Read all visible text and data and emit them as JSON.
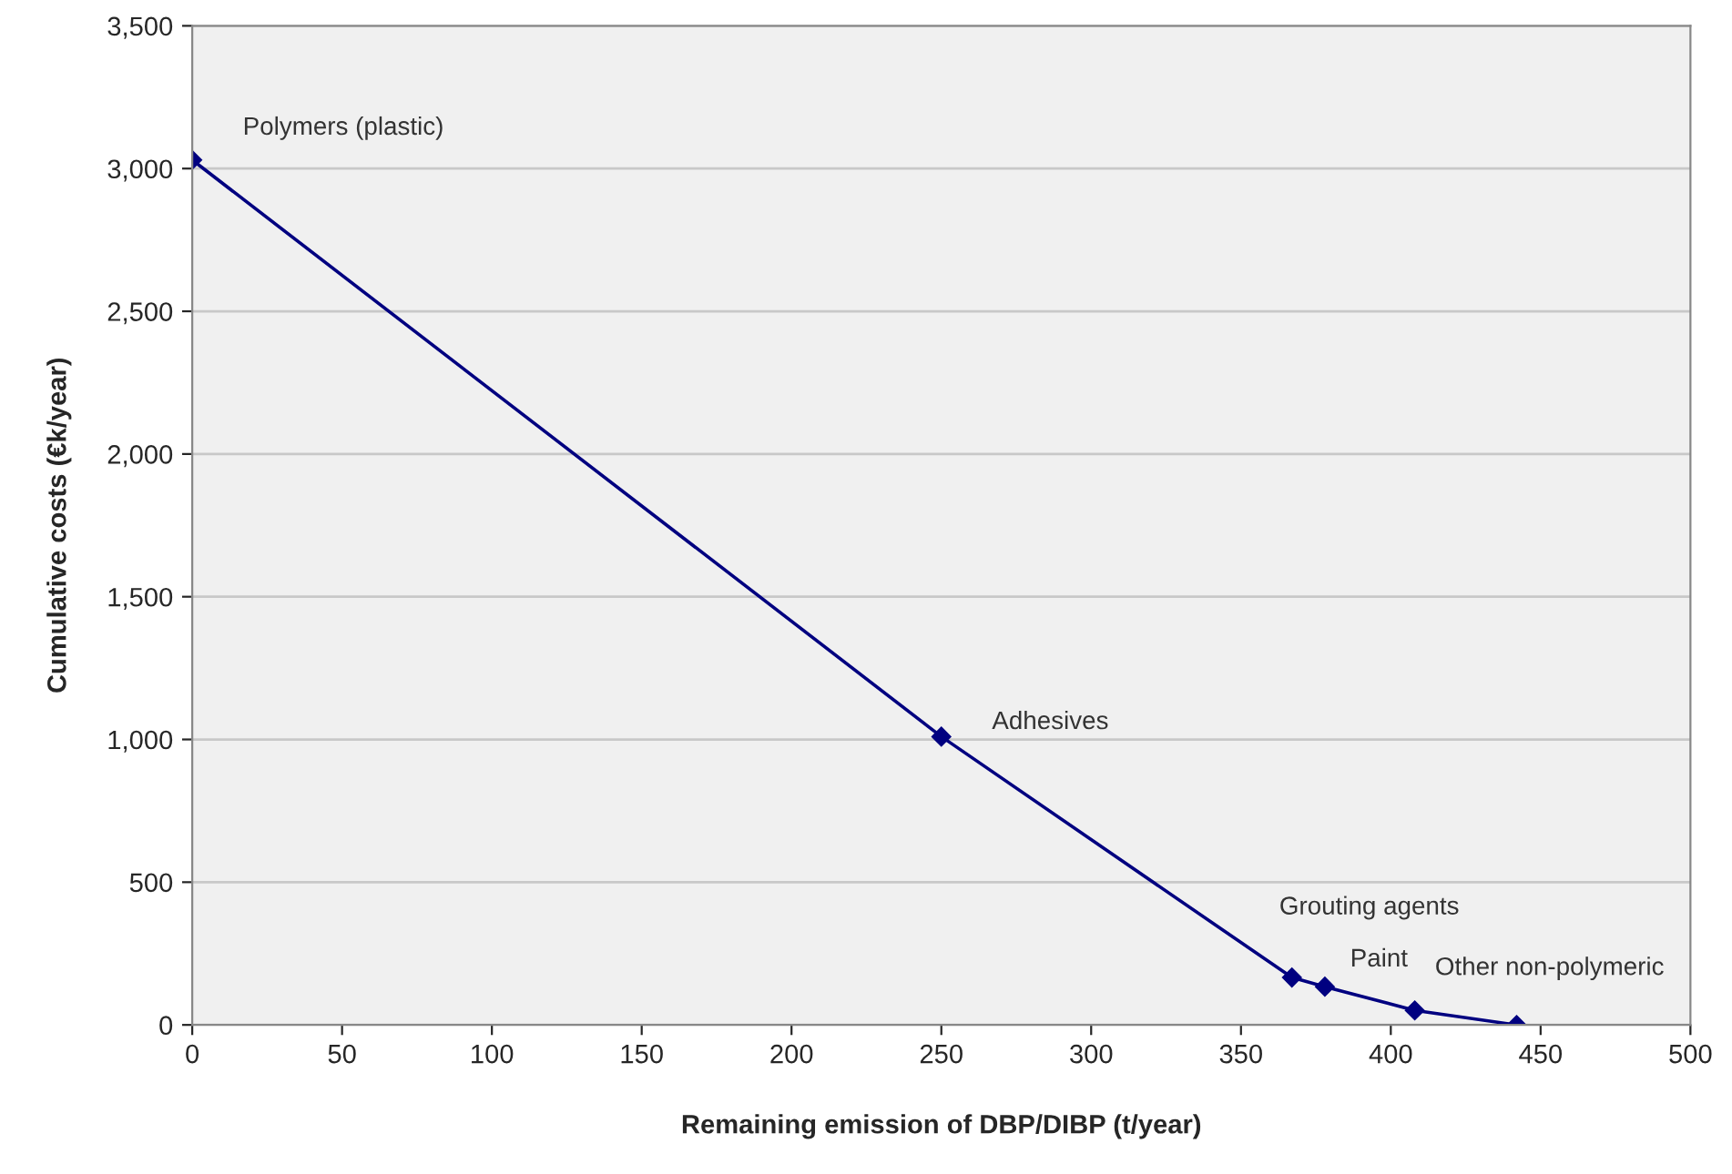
{
  "chart_data": {
    "type": "line",
    "xlabel": "Remaining emission of DBP/DIBP (t/year)",
    "ylabel": "Cumulative costs (€k/year)",
    "x": [
      0,
      250,
      367,
      378,
      408,
      442
    ],
    "series": [
      {
        "color": "#000080",
        "values": [
          3030,
          1010,
          166,
          134,
          51,
          0
        ]
      }
    ],
    "marker": "diamond",
    "line_style": "solid",
    "grid": "y",
    "legend": false,
    "xlim": [
      0,
      500
    ],
    "xticks": [
      0,
      50,
      100,
      150,
      200,
      250,
      300,
      350,
      400,
      450,
      500
    ],
    "ylim": [
      0,
      3500
    ],
    "yticks": [
      0,
      500,
      {
        "value": 1000,
        "label": "1,000"
      },
      {
        "value": 1500,
        "label": "1,500"
      },
      {
        "value": 2000,
        "label": "2,000"
      },
      {
        "value": 2500,
        "label": "2,500"
      },
      {
        "value": 3000,
        "label": "3,000"
      },
      {
        "value": 3500,
        "label": "3,500"
      }
    ],
    "annotations": [
      {
        "text": "Polymers (plastic)",
        "x": 0,
        "y": 3030
      },
      {
        "text": "Adhesives",
        "x": 250,
        "y": 1010
      },
      {
        "text": "Grouting agents",
        "x": 367,
        "y": 166
      },
      {
        "text": "Paint",
        "x": 378,
        "y": 134
      },
      {
        "text": "Other non-polymeric",
        "x": 408,
        "y": 51
      }
    ]
  }
}
